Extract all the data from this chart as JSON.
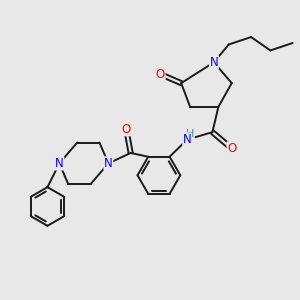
{
  "bg_color": "#e8e8e8",
  "bond_color": "#1a1a1a",
  "N_color": "#0000ff",
  "O_color": "#ff0000",
  "H_color": "#4a9090",
  "font_size": 8.5,
  "figsize": [
    3.0,
    3.0
  ],
  "dpi": 100,
  "xlim": [
    0,
    10
  ],
  "ylim": [
    0,
    10
  ]
}
